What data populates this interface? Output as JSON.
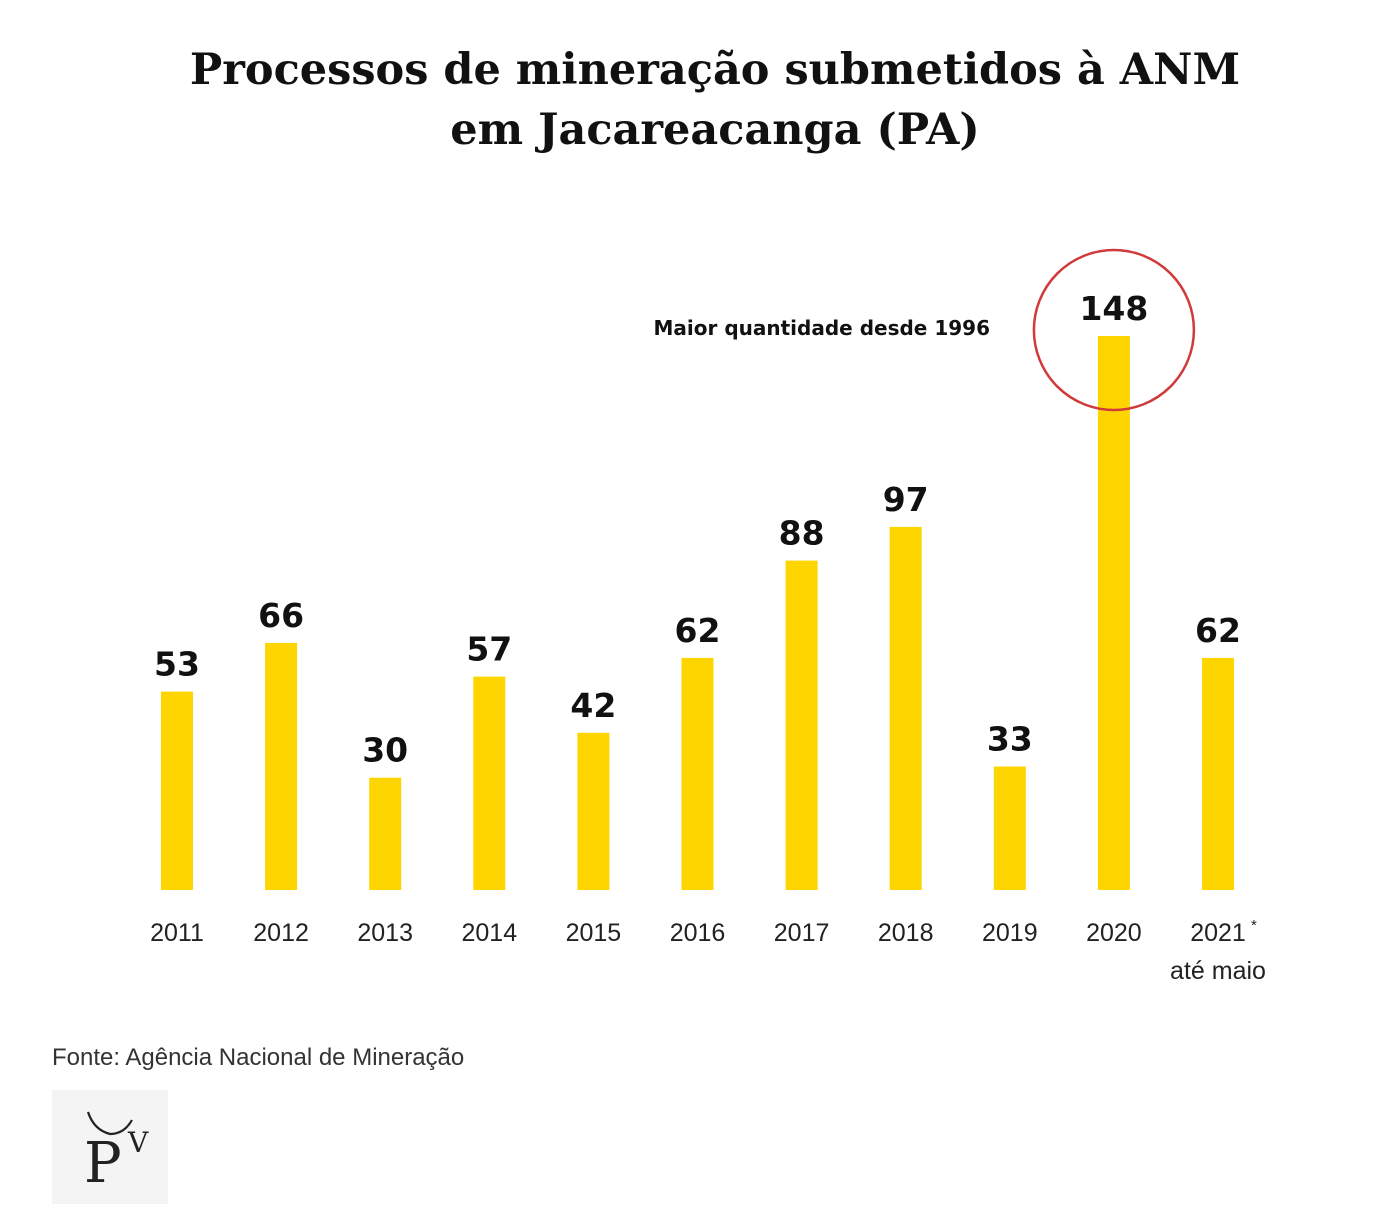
{
  "title": {
    "line1": "Processos de mineração submetidos à ANM",
    "line2": "em Jacareacanga (PA)"
  },
  "chart_data": {
    "type": "bar",
    "title": "Processos de mineração submetidos à ANM em Jacareacanga (PA)",
    "categories": [
      "2011",
      "2012",
      "2013",
      "2014",
      "2015",
      "2016",
      "2017",
      "2018",
      "2019",
      "2020",
      "2021"
    ],
    "values": [
      53,
      66,
      30,
      57,
      42,
      62,
      88,
      97,
      33,
      148,
      62
    ],
    "xlabel": "",
    "ylabel": "",
    "ylim": [
      0,
      148
    ],
    "grid": false,
    "bar_color": "#FFD500",
    "highlight": {
      "category": "2020",
      "text": "Maior quantidade desde 1996",
      "circle_color": "#D03A3A"
    },
    "last_category_note": {
      "superscript": "*",
      "subtitle": "até maio"
    }
  },
  "source": "Fonte: Agência Nacional de Mineração",
  "logo": {
    "icon": "pv-logo",
    "letters": [
      "P",
      "V"
    ]
  }
}
